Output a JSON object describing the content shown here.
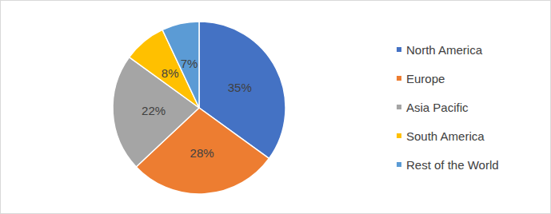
{
  "chart_data": {
    "type": "pie",
    "categories": [
      "North America",
      "Europe",
      "Asia Pacific",
      "South America",
      "Rest of the World"
    ],
    "values": [
      35,
      28,
      22,
      8,
      7
    ],
    "value_labels": [
      "35%",
      "28%",
      "22%",
      "8%",
      "7%"
    ],
    "colors": [
      "#4472c4",
      "#ed7d31",
      "#a5a5a5",
      "#ffc000",
      "#5b9bd5"
    ],
    "data_labels": true,
    "legend": "right"
  }
}
